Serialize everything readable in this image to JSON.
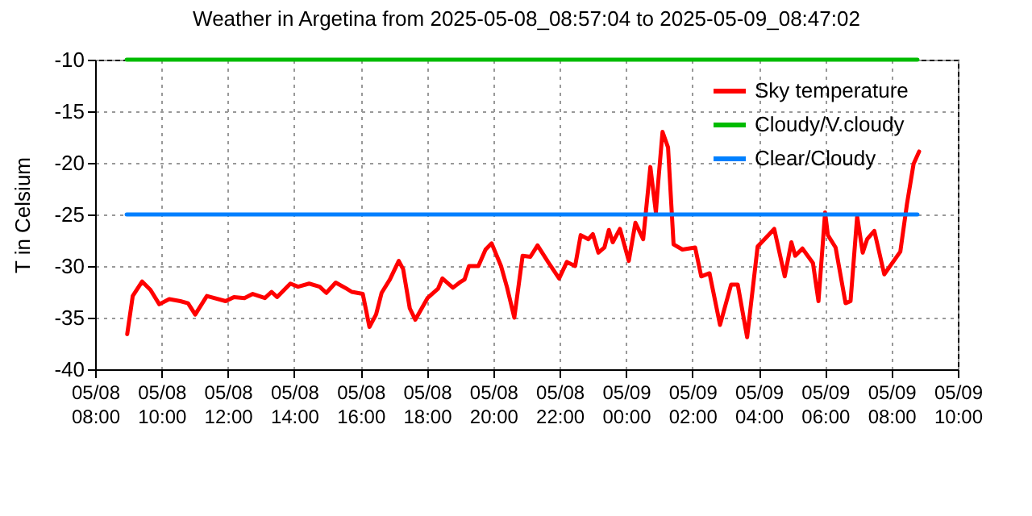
{
  "chart_data": {
    "type": "line",
    "title": "Weather in Argetina from 2025-05-08_08:57:04 to 2025-05-09_08:47:02",
    "ylabel": "T in Celsium",
    "xlim": [
      "2025-05-08T08:00",
      "2025-05-09T10:00"
    ],
    "xticks": [
      {
        "value": "2025-05-08T08:00",
        "label": "05/08\n08:00"
      },
      {
        "value": "2025-05-08T10:00",
        "label": "05/08\n10:00"
      },
      {
        "value": "2025-05-08T12:00",
        "label": "05/08\n12:00"
      },
      {
        "value": "2025-05-08T14:00",
        "label": "05/08\n14:00"
      },
      {
        "value": "2025-05-08T16:00",
        "label": "05/08\n16:00"
      },
      {
        "value": "2025-05-08T18:00",
        "label": "05/08\n18:00"
      },
      {
        "value": "2025-05-08T20:00",
        "label": "05/08\n20:00"
      },
      {
        "value": "2025-05-08T22:00",
        "label": "05/08\n22:00"
      },
      {
        "value": "2025-05-09T00:00",
        "label": "05/09\n00:00"
      },
      {
        "value": "2025-05-09T02:00",
        "label": "05/09\n02:00"
      },
      {
        "value": "2025-05-09T04:00",
        "label": "05/09\n04:00"
      },
      {
        "value": "2025-05-09T06:00",
        "label": "05/09\n06:00"
      },
      {
        "value": "2025-05-09T08:00",
        "label": "05/09\n08:00"
      },
      {
        "value": "2025-05-09T10:00",
        "label": "05/09\n10:00"
      }
    ],
    "ylim": [
      -40,
      -10
    ],
    "yticks": [
      -40,
      -35,
      -30,
      -25,
      -20,
      -15,
      -10
    ],
    "grid": true,
    "legend": "top right",
    "series": [
      {
        "name": "Sky temperature",
        "color": "#ff0000",
        "x": [
          "2025-05-08T08:58",
          "2025-05-08T09:08",
          "2025-05-08T09:25",
          "2025-05-08T09:40",
          "2025-05-08T09:56",
          "2025-05-08T10:14",
          "2025-05-08T10:34",
          "2025-05-08T10:48",
          "2025-05-08T11:01",
          "2025-05-08T11:22",
          "2025-05-08T11:56",
          "2025-05-08T12:11",
          "2025-05-08T12:30",
          "2025-05-08T12:45",
          "2025-05-08T13:07",
          "2025-05-08T13:19",
          "2025-05-08T13:29",
          "2025-05-08T13:53",
          "2025-05-08T14:07",
          "2025-05-08T14:27",
          "2025-05-08T14:46",
          "2025-05-08T14:58",
          "2025-05-08T15:15",
          "2025-05-08T15:35",
          "2025-05-08T15:44",
          "2025-05-08T16:04",
          "2025-05-08T16:16",
          "2025-05-08T16:28",
          "2025-05-08T16:38",
          "2025-05-08T16:53",
          "2025-05-08T17:09",
          "2025-05-08T17:17",
          "2025-05-08T17:29",
          "2025-05-08T17:39",
          "2025-05-08T18:01",
          "2025-05-08T18:20",
          "2025-05-08T18:28",
          "2025-05-08T18:47",
          "2025-05-08T18:59",
          "2025-05-08T19:08",
          "2025-05-08T19:16",
          "2025-05-08T19:33",
          "2025-05-08T19:46",
          "2025-05-08T19:57",
          "2025-05-08T20:14",
          "2025-05-08T20:25",
          "2025-05-08T20:38",
          "2025-05-08T20:53",
          "2025-05-08T21:07",
          "2025-05-08T21:20",
          "2025-05-08T21:39",
          "2025-05-08T21:59",
          "2025-05-08T22:13",
          "2025-05-08T22:28",
          "2025-05-08T22:38",
          "2025-05-08T22:52",
          "2025-05-08T23:00",
          "2025-05-08T23:10",
          "2025-05-08T23:21",
          "2025-05-08T23:29",
          "2025-05-08T23:36",
          "2025-05-08T23:49",
          "2025-05-09T00:05",
          "2025-05-09T00:17",
          "2025-05-09T00:31",
          "2025-05-09T00:44",
          "2025-05-09T00:54",
          "2025-05-09T00:58",
          "2025-05-09T01:06",
          "2025-05-09T01:16",
          "2025-05-09T01:26",
          "2025-05-09T01:42",
          "2025-05-09T02:05",
          "2025-05-09T02:16",
          "2025-05-09T02:31",
          "2025-05-09T02:50",
          "2025-05-09T03:10",
          "2025-05-09T03:22",
          "2025-05-09T03:39",
          "2025-05-09T03:58",
          "2025-05-09T04:28",
          "2025-05-09T04:47",
          "2025-05-09T04:59",
          "2025-05-09T05:06",
          "2025-05-09T05:19",
          "2025-05-09T05:38",
          "2025-05-09T05:48",
          "2025-05-09T06:00",
          "2025-05-09T06:05",
          "2025-05-09T06:19",
          "2025-05-09T06:37",
          "2025-05-09T06:46",
          "2025-05-09T06:58",
          "2025-05-09T07:08",
          "2025-05-09T07:16",
          "2025-05-09T07:29",
          "2025-05-09T07:47",
          "2025-05-09T08:16",
          "2025-05-09T08:28",
          "2025-05-09T08:40",
          "2025-05-09T08:50"
        ],
        "values": [
          -36.6,
          -32.9,
          -31.5,
          -32.3,
          -33.7,
          -33.2,
          -33.4,
          -33.6,
          -34.7,
          -32.9,
          -33.4,
          -33.0,
          -33.1,
          -32.7,
          -33.1,
          -32.5,
          -33.0,
          -31.7,
          -32.0,
          -31.7,
          -32.0,
          -32.6,
          -31.6,
          -32.2,
          -32.5,
          -32.7,
          -35.9,
          -34.7,
          -32.6,
          -31.3,
          -29.5,
          -30.3,
          -34.1,
          -35.2,
          -33.1,
          -32.2,
          -31.2,
          -32.1,
          -31.6,
          -31.3,
          -30.0,
          -30.0,
          -28.4,
          -27.8,
          -30.0,
          -32.1,
          -35.0,
          -29.0,
          -29.1,
          -28.0,
          -29.6,
          -31.2,
          -29.6,
          -30.0,
          -27.0,
          -27.4,
          -26.9,
          -28.7,
          -28.2,
          -26.5,
          -27.7,
          -26.4,
          -29.5,
          -25.8,
          -27.4,
          -20.4,
          -24.8,
          -22.0,
          -17.0,
          -18.5,
          -27.9,
          -28.4,
          -28.2,
          -31.0,
          -30.7,
          -35.7,
          -31.8,
          -31.8,
          -36.9,
          -28.1,
          -26.4,
          -31.0,
          -27.7,
          -29.0,
          -28.3,
          -29.7,
          -33.4,
          -24.8,
          -27.0,
          -28.2,
          -33.6,
          -33.4,
          -25.2,
          -28.7,
          -27.4,
          -26.6,
          -30.8,
          -28.6,
          -24.0,
          -20.1,
          -18.9
        ]
      },
      {
        "name": "Cloudy/V.cloudy",
        "color": "#00bb00",
        "x": [
          "2025-05-08T08:57",
          "2025-05-09T08:47"
        ],
        "values": [
          -10,
          -10
        ]
      },
      {
        "name": "Clear/Cloudy",
        "color": "#0080ff",
        "x": [
          "2025-05-08T08:57",
          "2025-05-09T08:47"
        ],
        "values": [
          -25,
          -25
        ]
      }
    ]
  }
}
